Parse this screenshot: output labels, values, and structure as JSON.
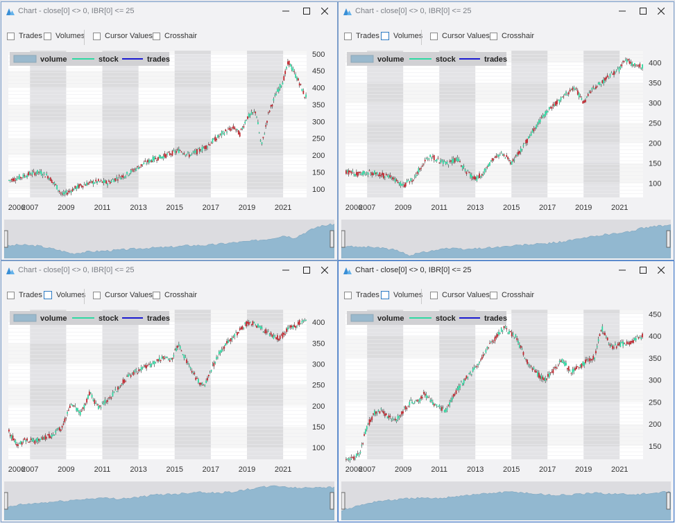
{
  "windows": [
    {
      "title": "Chart - close[0] <> 0, IBR[0] <= 25",
      "toolbar": {
        "trades": "Trades",
        "volumes": "Volumes",
        "cursor": "Cursor Values",
        "crosshair": "Crosshair"
      },
      "volumes_focused": false,
      "active": false,
      "legend": {
        "volume": "volume",
        "stock": "stock",
        "trades": "trades"
      },
      "chart_data": {
        "type": "line",
        "subtype": "candlestick",
        "title": "",
        "x_tick_labels": [
          "2006",
          "2007",
          "2009",
          "2011",
          "2013",
          "2015",
          "2017",
          "2019",
          "2021"
        ],
        "y_tick_labels": [
          "100",
          "150",
          "200",
          "250",
          "300",
          "350",
          "400",
          "450",
          "500"
        ],
        "ylim": [
          75,
          510
        ],
        "xlim": [
          2005.8,
          2022.3
        ],
        "legend": [
          "volume",
          "stock",
          "trades"
        ],
        "legend_position": "top-left",
        "series": [
          {
            "name": "stock",
            "x": [
              2005.8,
              2006.5,
              2007.0,
              2007.5,
              2008.0,
              2008.4,
              2008.8,
              2009.2,
              2009.7,
              2010.3,
              2010.8,
              2011.3,
              2011.8,
              2012.3,
              2012.8,
              2013.3,
              2013.8,
              2014.3,
              2014.8,
              2015.3,
              2015.8,
              2016.3,
              2016.8,
              2017.3,
              2017.8,
              2018.3,
              2018.6,
              2019.0,
              2019.5,
              2019.8,
              2020.2,
              2020.6,
              2021.0,
              2021.3,
              2021.6,
              2021.9,
              2022.2
            ],
            "values": [
              125,
              135,
              145,
              150,
              138,
              112,
              82,
              94,
              108,
              118,
              122,
              118,
              132,
              142,
              158,
              175,
              188,
              196,
              205,
              215,
              200,
              212,
              228,
              250,
              270,
              282,
              262,
              312,
              330,
              225,
              325,
              380,
              420,
              478,
              445,
              415,
              375
            ]
          }
        ],
        "volume": {
          "x": [
            2005.8,
            2006.5,
            2007.5,
            2008.5,
            2009.2,
            2010,
            2011,
            2012,
            2013,
            2014,
            2015,
            2016,
            2017,
            2018,
            2019,
            2019.8,
            2020.3,
            2021,
            2021.5,
            2022.3
          ],
          "values": [
            0.3,
            0.35,
            0.32,
            0.2,
            0.1,
            0.15,
            0.18,
            0.22,
            0.26,
            0.28,
            0.33,
            0.34,
            0.4,
            0.45,
            0.52,
            0.62,
            0.55,
            0.75,
            0.88,
            0.95
          ]
        }
      }
    },
    {
      "title": "Chart - close[0] <> 0, IBR[0] <= 25",
      "toolbar": {
        "trades": "Trades",
        "volumes": "Volumes",
        "cursor": "Cursor Values",
        "crosshair": "Crosshair"
      },
      "volumes_focused": true,
      "active": false,
      "legend": {
        "volume": "volume",
        "stock": "stock",
        "trades": "trades"
      },
      "chart_data": {
        "type": "line",
        "subtype": "candlestick",
        "title": "",
        "x_tick_labels": [
          "2006",
          "2007",
          "2009",
          "2011",
          "2013",
          "2015",
          "2017",
          "2019",
          "2021"
        ],
        "y_tick_labels": [
          "100",
          "150",
          "200",
          "250",
          "300",
          "350",
          "400"
        ],
        "ylim": [
          65,
          430
        ],
        "xlim": [
          2005.8,
          2022.3
        ],
        "legend": [
          "volume",
          "stock",
          "trades"
        ],
        "legend_position": "top-left",
        "series": [
          {
            "name": "stock",
            "x": [
              2005.8,
              2006.5,
              2007.0,
              2007.5,
              2008.0,
              2008.5,
              2009.0,
              2009.5,
              2010.0,
              2010.5,
              2011.0,
              2011.5,
              2012.0,
              2012.5,
              2013.0,
              2013.5,
              2014.0,
              2014.5,
              2015.0,
              2015.5,
              2016.0,
              2016.5,
              2017.0,
              2017.5,
              2018.0,
              2018.5,
              2019.0,
              2019.5,
              2020.0,
              2020.5,
              2021.0,
              2021.3,
              2021.7,
              2022.2
            ],
            "values": [
              130,
              122,
              128,
              125,
              118,
              112,
              95,
              108,
              142,
              170,
              155,
              150,
              160,
              130,
              110,
              128,
              160,
              175,
              150,
              180,
              215,
              250,
              280,
              300,
              320,
              340,
              300,
              335,
              350,
              370,
              385,
              410,
              395,
              390
            ]
          }
        ],
        "volume": {
          "x": [
            2005.8,
            2006.5,
            2007.5,
            2008.5,
            2009.2,
            2010,
            2011,
            2012,
            2013,
            2014,
            2015,
            2016,
            2017,
            2018,
            2019,
            2020,
            2021,
            2022.3
          ],
          "values": [
            0.3,
            0.3,
            0.28,
            0.2,
            0.05,
            0.15,
            0.25,
            0.22,
            0.26,
            0.3,
            0.35,
            0.38,
            0.45,
            0.55,
            0.65,
            0.7,
            0.85,
            0.92
          ]
        }
      }
    },
    {
      "title": "Chart - close[0] <> 0, IBR[0] <= 25",
      "toolbar": {
        "trades": "Trades",
        "volumes": "Volumes",
        "cursor": "Cursor Values",
        "crosshair": "Crosshair"
      },
      "volumes_focused": true,
      "active": false,
      "legend": {
        "volume": "volume",
        "stock": "stock",
        "trades": "trades"
      },
      "chart_data": {
        "type": "line",
        "subtype": "candlestick",
        "title": "",
        "x_tick_labels": [
          "2006",
          "2007",
          "2009",
          "2011",
          "2013",
          "2015",
          "2017",
          "2019",
          "2021"
        ],
        "y_tick_labels": [
          "100",
          "150",
          "200",
          "250",
          "300",
          "350",
          "400"
        ],
        "ylim": [
          72,
          430
        ],
        "xlim": [
          2005.8,
          2022.3
        ],
        "legend": [
          "volume",
          "stock",
          "trades"
        ],
        "legend_position": "top-left",
        "series": [
          {
            "name": "stock",
            "x": [
              2005.8,
              2006.3,
              2006.8,
              2007.3,
              2007.8,
              2008.3,
              2008.8,
              2009.3,
              2009.8,
              2010.3,
              2010.8,
              2011.3,
              2011.8,
              2012.3,
              2012.8,
              2013.3,
              2013.8,
              2014.3,
              2014.8,
              2015.2,
              2015.7,
              2016.2,
              2016.6,
              2017.0,
              2017.5,
              2018.0,
              2018.5,
              2018.9,
              2019.3,
              2019.8,
              2020.3,
              2020.8,
              2021.3,
              2021.8,
              2022.2
            ],
            "values": [
              140,
              105,
              120,
              115,
              125,
              130,
              150,
              205,
              180,
              230,
              195,
              215,
              240,
              265,
              280,
              290,
              300,
              315,
              310,
              345,
              305,
              265,
              245,
              285,
              330,
              355,
              375,
              395,
              400,
              385,
              370,
              360,
              385,
              395,
              410
            ]
          }
        ],
        "volume": {
          "x": [
            2005.8,
            2006.5,
            2007.5,
            2008.5,
            2009.5,
            2010.5,
            2011.5,
            2012.5,
            2013.5,
            2014.5,
            2015.5,
            2016.5,
            2017.5,
            2018.5,
            2019.5,
            2020.5,
            2021.5,
            2022.3
          ],
          "values": [
            0.3,
            0.4,
            0.45,
            0.5,
            0.55,
            0.6,
            0.58,
            0.62,
            0.7,
            0.72,
            0.78,
            0.74,
            0.8,
            0.9,
            0.95,
            0.88,
            0.92,
            0.9
          ]
        }
      }
    },
    {
      "title": "Chart - close[0] <> 0, IBR[0] <= 25",
      "toolbar": {
        "trades": "Trades",
        "volumes": "Volumes",
        "cursor": "Cursor Values",
        "crosshair": "Crosshair"
      },
      "volumes_focused": true,
      "active": true,
      "legend": {
        "volume": "volume",
        "stock": "stock",
        "trades": "trades"
      },
      "chart_data": {
        "type": "line",
        "subtype": "candlestick",
        "title": "",
        "x_tick_labels": [
          "2006",
          "2007",
          "2009",
          "2011",
          "2013",
          "2015",
          "2017",
          "2019",
          "2021"
        ],
        "y_tick_labels": [
          "150",
          "200",
          "250",
          "300",
          "350",
          "400",
          "450"
        ],
        "ylim": [
          120,
          460
        ],
        "xlim": [
          2005.8,
          2022.3
        ],
        "legend": [
          "volume",
          "stock",
          "trades"
        ],
        "legend_position": "top-left",
        "series": [
          {
            "name": "stock",
            "x": [
              2005.8,
              2006.2,
              2006.6,
              2007.0,
              2007.4,
              2007.8,
              2008.2,
              2008.6,
              2009.0,
              2009.4,
              2009.8,
              2010.2,
              2010.6,
              2011.0,
              2011.4,
              2011.8,
              2012.2,
              2012.6,
              2013.0,
              2013.4,
              2013.8,
              2014.2,
              2014.6,
              2014.9,
              2015.3,
              2015.8,
              2016.3,
              2016.8,
              2017.3,
              2017.8,
              2018.3,
              2018.8,
              2019.2,
              2019.6,
              2020.0,
              2020.5,
              2021.0,
              2021.5,
              2022.2
            ],
            "values": [
              125,
              120,
              135,
              195,
              225,
              230,
              215,
              210,
              230,
              250,
              250,
              270,
              250,
              240,
              230,
              265,
              290,
              310,
              330,
              355,
              380,
              400,
              420,
              410,
              395,
              345,
              320,
              300,
              320,
              345,
              320,
              330,
              345,
              350,
              420,
              375,
              380,
              385,
              400
            ]
          }
        ],
        "volume": {
          "x": [
            2005.8,
            2006.5,
            2007.5,
            2008.5,
            2009.5,
            2010.5,
            2011.5,
            2012.5,
            2013.5,
            2014.5,
            2015.5,
            2016.5,
            2017.5,
            2018.5,
            2019.5,
            2020.5,
            2021.5,
            2022.3
          ],
          "values": [
            0.25,
            0.35,
            0.5,
            0.55,
            0.6,
            0.58,
            0.65,
            0.7,
            0.75,
            0.78,
            0.72,
            0.68,
            0.7,
            0.74,
            0.72,
            0.7,
            0.74,
            0.78
          ]
        }
      }
    }
  ]
}
